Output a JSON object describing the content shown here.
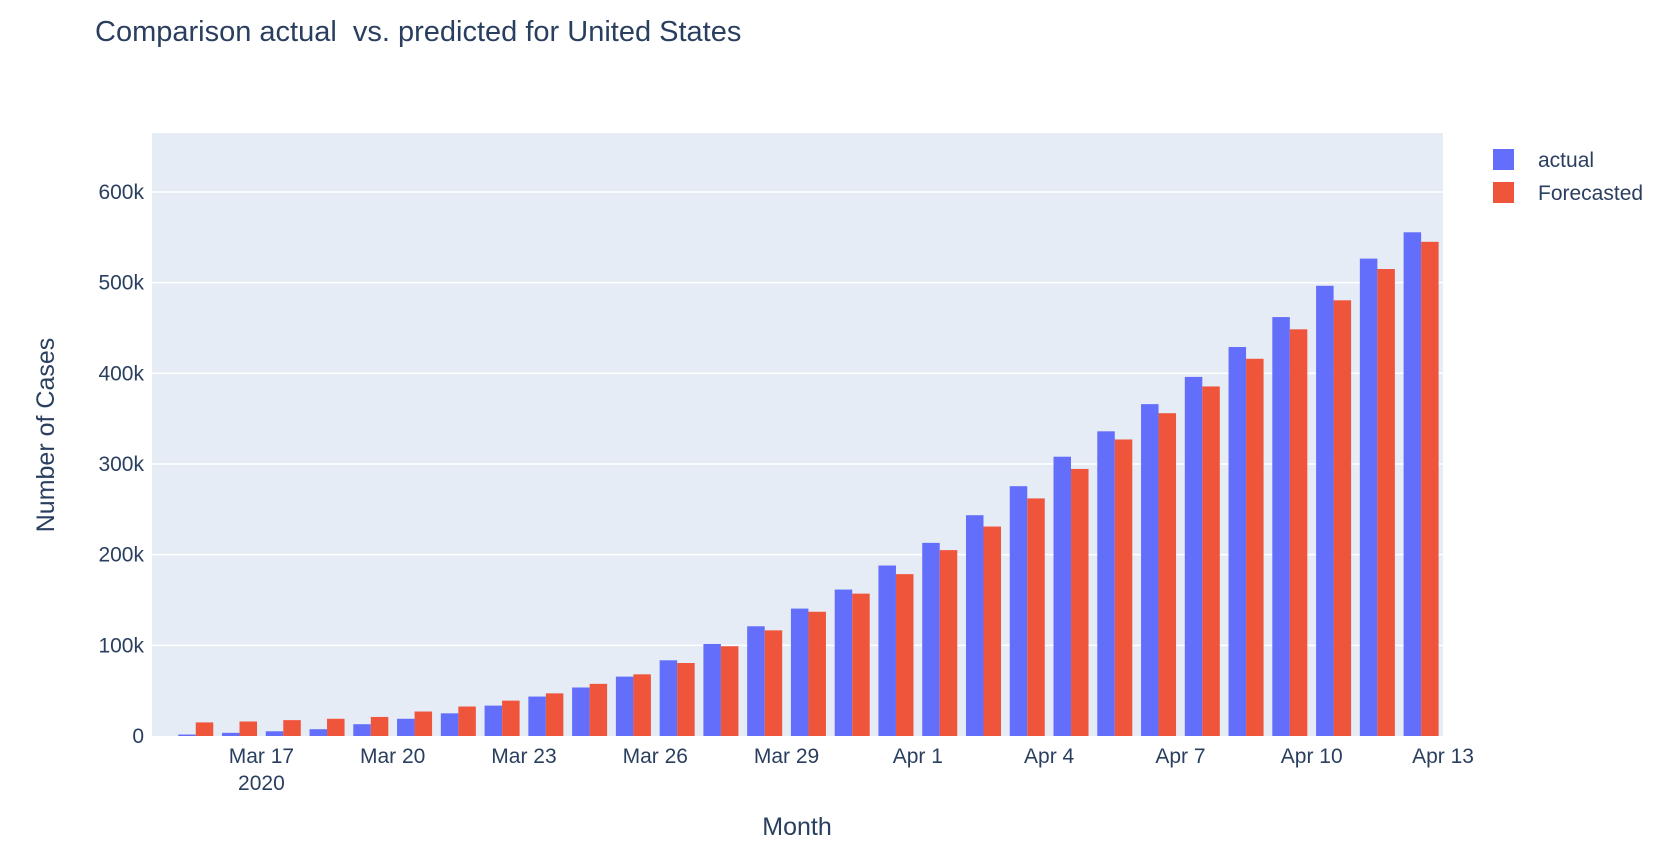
{
  "chart_data": {
    "type": "bar",
    "title": "Comparison actual  vs. predicted for United States",
    "xlabel": "Month",
    "ylabel": "Number of Cases",
    "ylim": [
      0,
      665000
    ],
    "grid": true,
    "legend_position": "top-right",
    "categories": [
      "2020-03-15",
      "2020-03-16",
      "2020-03-17",
      "2020-03-18",
      "2020-03-19",
      "2020-03-20",
      "2020-03-21",
      "2020-03-22",
      "2020-03-23",
      "2020-03-24",
      "2020-03-25",
      "2020-03-26",
      "2020-03-27",
      "2020-03-28",
      "2020-03-29",
      "2020-03-30",
      "2020-03-31",
      "2020-04-01",
      "2020-04-02",
      "2020-04-03",
      "2020-04-04",
      "2020-04-05",
      "2020-04-06",
      "2020-04-07",
      "2020-04-08",
      "2020-04-09",
      "2020-04-10",
      "2020-04-11",
      "2020-04-12"
    ],
    "x_ticks": [
      {
        "date": "2020-03-17",
        "label": "Mar 17",
        "sublabel": "2020"
      },
      {
        "date": "2020-03-20",
        "label": "Mar 20",
        "sublabel": ""
      },
      {
        "date": "2020-03-23",
        "label": "Mar 23",
        "sublabel": ""
      },
      {
        "date": "2020-03-26",
        "label": "Mar 26",
        "sublabel": ""
      },
      {
        "date": "2020-03-29",
        "label": "Mar 29",
        "sublabel": ""
      },
      {
        "date": "2020-04-01",
        "label": "Apr 1",
        "sublabel": ""
      },
      {
        "date": "2020-04-04",
        "label": "Apr 4",
        "sublabel": ""
      },
      {
        "date": "2020-04-07",
        "label": "Apr 7",
        "sublabel": ""
      },
      {
        "date": "2020-04-10",
        "label": "Apr 10",
        "sublabel": ""
      },
      {
        "date": "2020-04-13",
        "label": "Apr 13",
        "sublabel": ""
      }
    ],
    "y_ticks": [
      {
        "value": 0,
        "label": "0"
      },
      {
        "value": 100000,
        "label": "100k"
      },
      {
        "value": 200000,
        "label": "200k"
      },
      {
        "value": 300000,
        "label": "300k"
      },
      {
        "value": 400000,
        "label": "400k"
      },
      {
        "value": 500000,
        "label": "500k"
      },
      {
        "value": 600000,
        "label": "600k"
      }
    ],
    "series": [
      {
        "name": "actual",
        "color": "#636efa",
        "values": [
          1600,
          3500,
          5200,
          7500,
          13000,
          19000,
          25000,
          33500,
          43500,
          53500,
          65500,
          83500,
          101500,
          121000,
          140500,
          161500,
          188000,
          213000,
          243500,
          275500,
          308000,
          336000,
          366000,
          396000,
          429000,
          462000,
          496500,
          526500,
          555500
        ]
      },
      {
        "name": "Forecasted",
        "color": "#ef553b",
        "values": [
          15000,
          16000,
          17500,
          19000,
          21000,
          27000,
          32500,
          39000,
          47000,
          57500,
          68000,
          80500,
          99000,
          116500,
          137000,
          157000,
          178500,
          205000,
          231000,
          262000,
          294500,
          327000,
          356000,
          385500,
          416000,
          448500,
          480500,
          515000,
          545000
        ]
      }
    ]
  }
}
